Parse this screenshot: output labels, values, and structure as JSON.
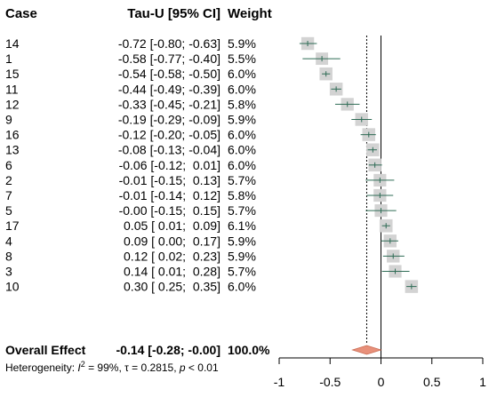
{
  "chart_data": {
    "type": "forest",
    "columns": {
      "case": "Case",
      "estimate": "Tau-U [95% CI]",
      "weight": "Weight"
    },
    "rows": [
      {
        "case": "14",
        "est_text": "-0.72 [-0.80; -0.63]",
        "weight_text": "5.9%",
        "est": -0.72,
        "lo": -0.8,
        "hi": -0.63,
        "weight": 5.9
      },
      {
        "case": "1",
        "est_text": "-0.58 [-0.77; -0.40]",
        "weight_text": "5.5%",
        "est": -0.58,
        "lo": -0.77,
        "hi": -0.4,
        "weight": 5.5
      },
      {
        "case": "15",
        "est_text": "-0.54 [-0.58; -0.50]",
        "weight_text": "6.0%",
        "est": -0.54,
        "lo": -0.58,
        "hi": -0.5,
        "weight": 6.0
      },
      {
        "case": "11",
        "est_text": "-0.44 [-0.49; -0.39]",
        "weight_text": "6.0%",
        "est": -0.44,
        "lo": -0.49,
        "hi": -0.39,
        "weight": 6.0
      },
      {
        "case": "12",
        "est_text": "-0.33 [-0.45; -0.21]",
        "weight_text": "5.8%",
        "est": -0.33,
        "lo": -0.45,
        "hi": -0.21,
        "weight": 5.8
      },
      {
        "case": "9",
        "est_text": "-0.19 [-0.29; -0.09]",
        "weight_text": "5.9%",
        "est": -0.19,
        "lo": -0.29,
        "hi": -0.09,
        "weight": 5.9
      },
      {
        "case": "16",
        "est_text": "-0.12 [-0.20; -0.05]",
        "weight_text": "6.0%",
        "est": -0.12,
        "lo": -0.2,
        "hi": -0.05,
        "weight": 6.0
      },
      {
        "case": "13",
        "est_text": "-0.08 [-0.13; -0.04]",
        "weight_text": "6.0%",
        "est": -0.08,
        "lo": -0.13,
        "hi": -0.04,
        "weight": 6.0
      },
      {
        "case": "6",
        "est_text": "-0.06 [-0.12;  0.01]",
        "weight_text": "6.0%",
        "est": -0.06,
        "lo": -0.12,
        "hi": 0.01,
        "weight": 6.0
      },
      {
        "case": "2",
        "est_text": "-0.01 [-0.15;  0.13]",
        "weight_text": "5.7%",
        "est": -0.01,
        "lo": -0.15,
        "hi": 0.13,
        "weight": 5.7
      },
      {
        "case": "7",
        "est_text": "-0.01 [-0.14;  0.12]",
        "weight_text": "5.8%",
        "est": -0.01,
        "lo": -0.14,
        "hi": 0.12,
        "weight": 5.8
      },
      {
        "case": "5",
        "est_text": "-0.00 [-0.15;  0.15]",
        "weight_text": "5.7%",
        "est": -0.0,
        "lo": -0.15,
        "hi": 0.15,
        "weight": 5.7
      },
      {
        "case": "17",
        "est_text": "0.05 [ 0.01;  0.09]",
        "weight_text": "6.1%",
        "est": 0.05,
        "lo": 0.01,
        "hi": 0.09,
        "weight": 6.1
      },
      {
        "case": "4",
        "est_text": "0.09 [ 0.00;  0.17]",
        "weight_text": "5.9%",
        "est": 0.09,
        "lo": 0.0,
        "hi": 0.17,
        "weight": 5.9
      },
      {
        "case": "8",
        "est_text": "0.12 [ 0.02;  0.23]",
        "weight_text": "5.9%",
        "est": 0.12,
        "lo": 0.02,
        "hi": 0.23,
        "weight": 5.9
      },
      {
        "case": "3",
        "est_text": "0.14 [ 0.01;  0.28]",
        "weight_text": "5.7%",
        "est": 0.14,
        "lo": 0.01,
        "hi": 0.28,
        "weight": 5.7
      },
      {
        "case": "10",
        "est_text": "0.30 [ 0.25;  0.35]",
        "weight_text": "6.0%",
        "est": 0.3,
        "lo": 0.25,
        "hi": 0.35,
        "weight": 6.0
      }
    ],
    "overall": {
      "label": "Overall Effect",
      "est_text": "-0.14 [-0.28; -0.00]",
      "weight_text": "100.0%",
      "est": -0.14,
      "lo": -0.28,
      "hi": -0.0
    },
    "heterogeneity": {
      "prefix": "Heterogeneity: ",
      "i2_symbol": "I",
      "i2_sup": "2",
      "i2_value": " = 99%, τ = 0.2815, ",
      "p_symbol": "p",
      "p_value": " < 0.01"
    },
    "x_ticks": [
      -1,
      -0.5,
      0,
      0.5,
      1
    ],
    "x_tick_labels": [
      "-1",
      "-0.5",
      "0",
      "0.5",
      "1"
    ],
    "xlim": [
      -1,
      1
    ],
    "colors": {
      "box": "#d3d3d3",
      "ci_line": "#2e6b55",
      "diamond": "#e8907a",
      "diamond_stroke": "#c96a52",
      "axis": "#000000"
    }
  }
}
